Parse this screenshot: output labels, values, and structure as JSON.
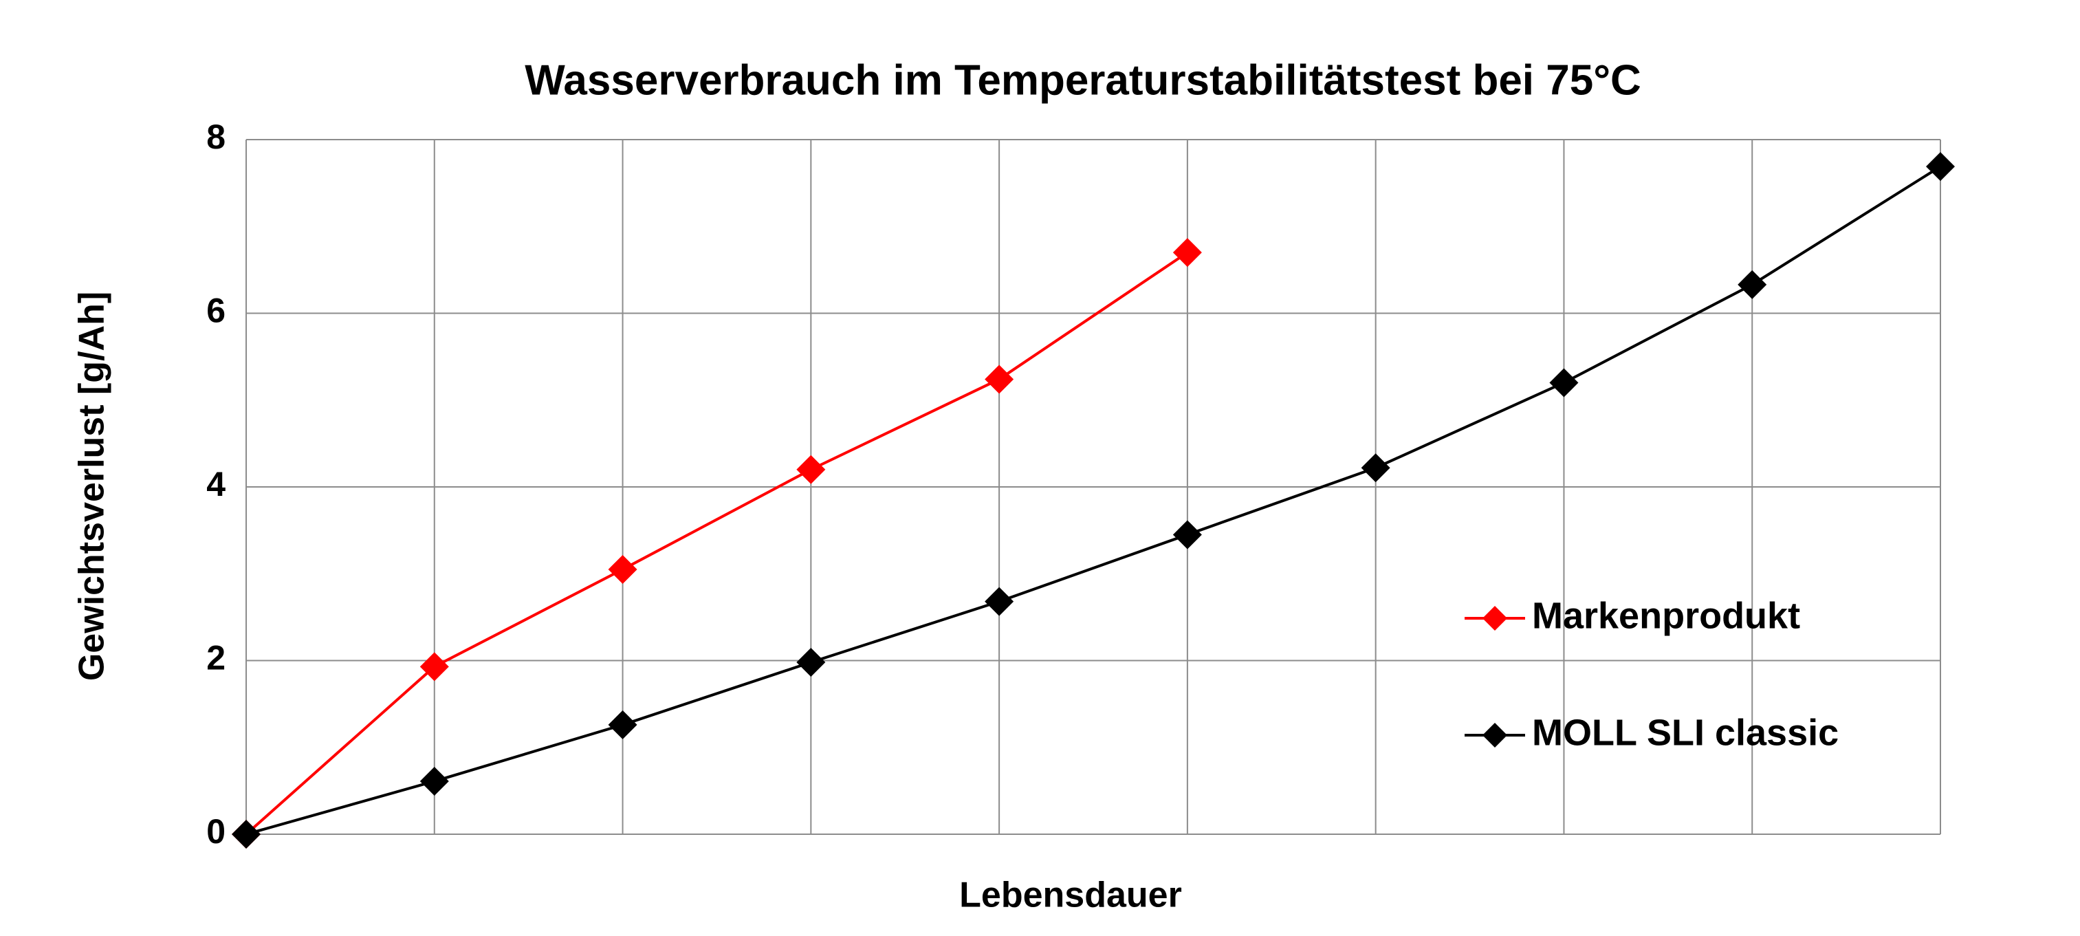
{
  "chart_data": {
    "type": "line",
    "title": "Wasserverbrauch im Temperaturstabilitätstest bei 75°C",
    "x_label": "Lebensdauer",
    "y_label": "Gewichtsverlust [g/Ah]",
    "categories": [
      null,
      null,
      null,
      null,
      null,
      null,
      null,
      null,
      null,
      null
    ],
    "series": [
      {
        "name": "Markenprodukt",
        "color": "#ff0000",
        "values": [
          0,
          1.93,
          3.05,
          4.2,
          5.24,
          6.7,
          null,
          null,
          null,
          null
        ]
      },
      {
        "name": "MOLL SLI classic",
        "color": "#000000",
        "values": [
          0,
          0.61,
          1.26,
          1.98,
          2.68,
          3.45,
          4.22,
          5.2,
          6.33,
          7.69
        ]
      }
    ],
    "ylim": [
      0,
      8
    ],
    "yticks": [
      0,
      2,
      4,
      6,
      8
    ],
    "grid": true,
    "legend": "right"
  }
}
